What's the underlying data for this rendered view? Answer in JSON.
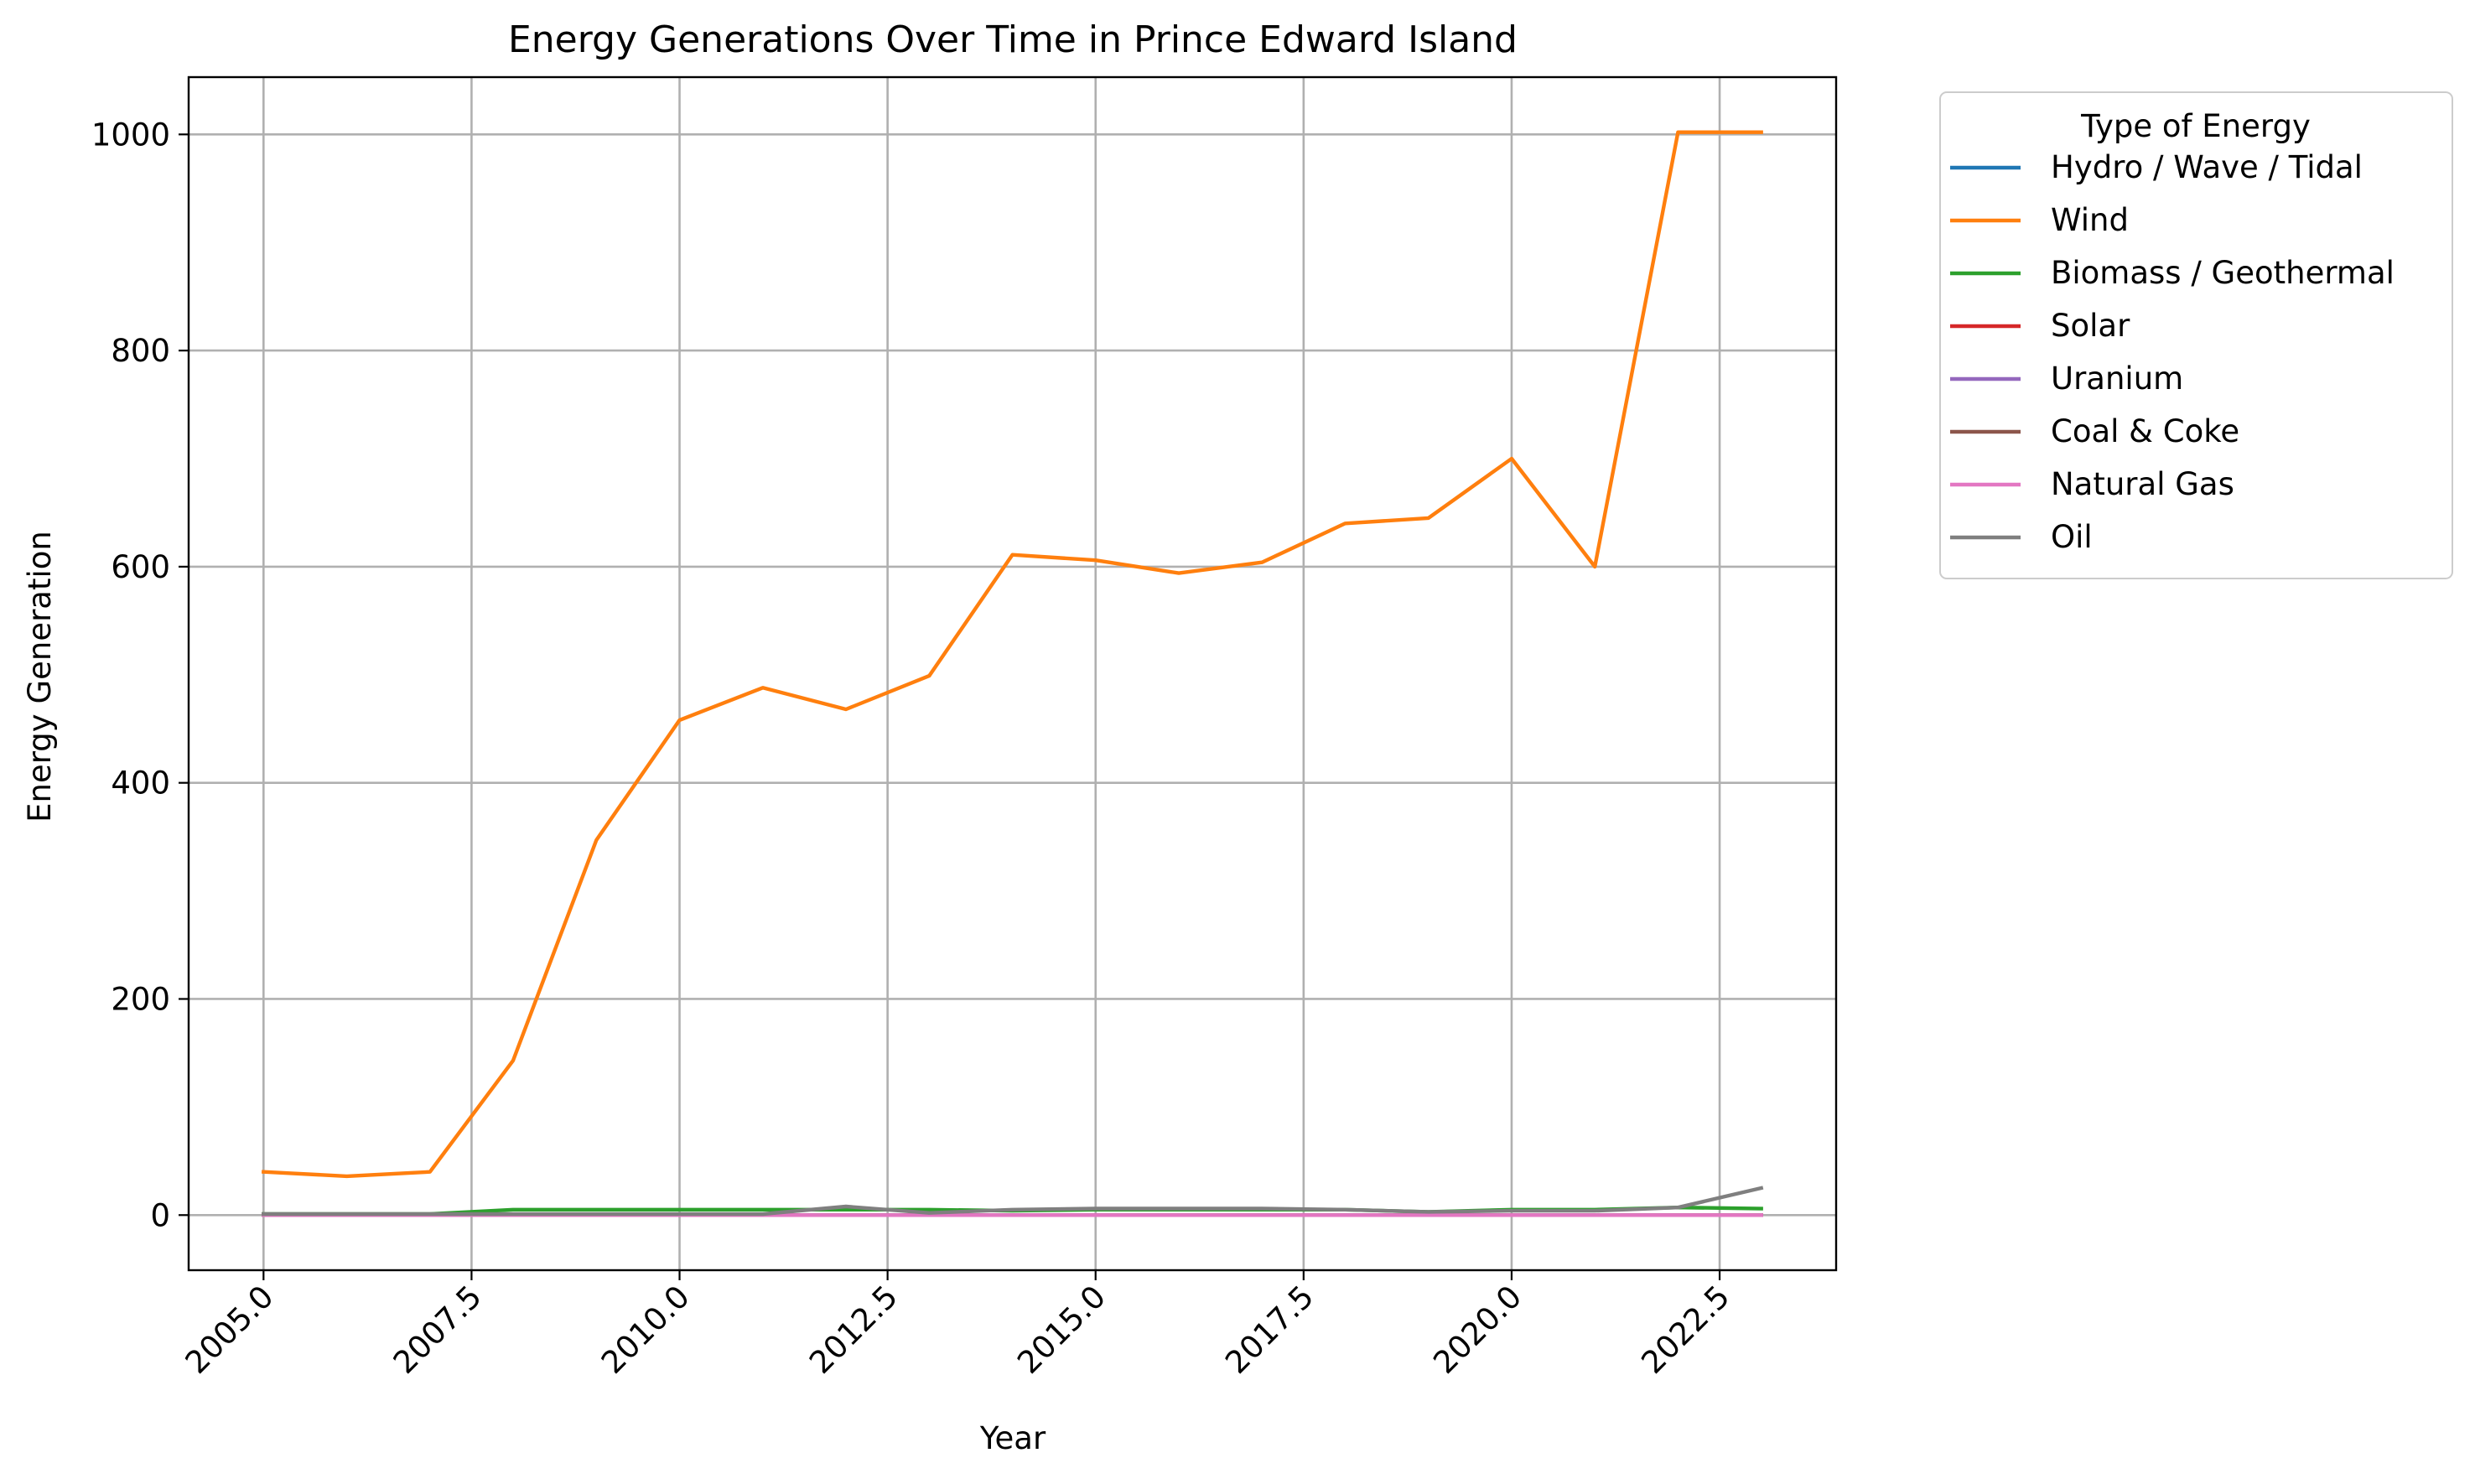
{
  "chart_data": {
    "type": "line",
    "title": "Energy Generations Over Time in Prince Edward Island",
    "xlabel": "Year",
    "ylabel": "Energy Generation",
    "xlim": [
      2004.1,
      2023.9
    ],
    "ylim": [
      -51,
      1053
    ],
    "xticks": [
      2005.0,
      2007.5,
      2010.0,
      2012.5,
      2015.0,
      2017.5,
      2020.0,
      2022.5
    ],
    "xtick_labels": [
      "2005.0",
      "2007.5",
      "2010.0",
      "2012.5",
      "2015.0",
      "2017.5",
      "2020.0",
      "2022.5"
    ],
    "yticks": [
      0,
      200,
      400,
      600,
      800,
      1000
    ],
    "ytick_labels": [
      "0",
      "200",
      "400",
      "600",
      "800",
      "1000"
    ],
    "grid": true,
    "legend": {
      "title": "Type of Energy",
      "placement": "outside-upper-right"
    },
    "x": [
      2005,
      2006,
      2007,
      2008,
      2009,
      2010,
      2011,
      2012,
      2013,
      2014,
      2015,
      2016,
      2017,
      2018,
      2019,
      2020,
      2021,
      2022,
      2023
    ],
    "series": [
      {
        "name": "Hydro / Wave / Tidal",
        "color": "#1f77b4",
        "values": [
          0,
          0,
          0,
          0,
          0,
          0,
          0,
          0,
          0,
          0,
          0,
          0,
          0,
          0,
          0,
          0,
          0,
          0,
          0
        ]
      },
      {
        "name": "Wind",
        "color": "#ff7f0e",
        "values": [
          40,
          36,
          40,
          143,
          347,
          458,
          488,
          468,
          499,
          611,
          606,
          594,
          604,
          640,
          645,
          700,
          600,
          1002,
          1002
        ]
      },
      {
        "name": "Biomass / Geothermal",
        "color": "#2ca02c",
        "values": [
          1,
          1,
          1,
          5,
          5,
          5,
          5,
          5,
          5,
          4,
          5,
          5,
          5,
          5,
          3,
          5,
          5,
          7,
          6
        ]
      },
      {
        "name": "Solar",
        "color": "#d62728",
        "values": [
          0,
          0,
          0,
          0,
          0,
          0,
          0,
          0,
          0,
          0,
          0,
          0,
          0,
          0,
          0,
          0,
          0,
          0,
          0
        ]
      },
      {
        "name": "Uranium",
        "color": "#9467bd",
        "values": [
          0,
          0,
          0,
          0,
          0,
          0,
          0,
          0,
          0,
          0,
          0,
          0,
          0,
          0,
          0,
          0,
          0,
          0,
          0
        ]
      },
      {
        "name": "Coal & Coke",
        "color": "#8c564b",
        "values": [
          0,
          0,
          0,
          0,
          0,
          0,
          0,
          0,
          0,
          0,
          0,
          0,
          0,
          0,
          0,
          0,
          0,
          0,
          0
        ]
      },
      {
        "name": "Natural Gas",
        "color": "#e377c2",
        "values": [
          0,
          0,
          0,
          0,
          0,
          0,
          0,
          0,
          0,
          0,
          0,
          0,
          0,
          0,
          0,
          0,
          0,
          0,
          0
        ]
      },
      {
        "name": "Oil",
        "color": "#7f7f7f",
        "values": [
          1,
          1,
          1,
          1,
          1,
          1,
          1,
          8,
          2,
          5,
          6,
          6,
          6,
          5,
          3,
          4,
          4,
          7,
          25
        ]
      }
    ]
  }
}
